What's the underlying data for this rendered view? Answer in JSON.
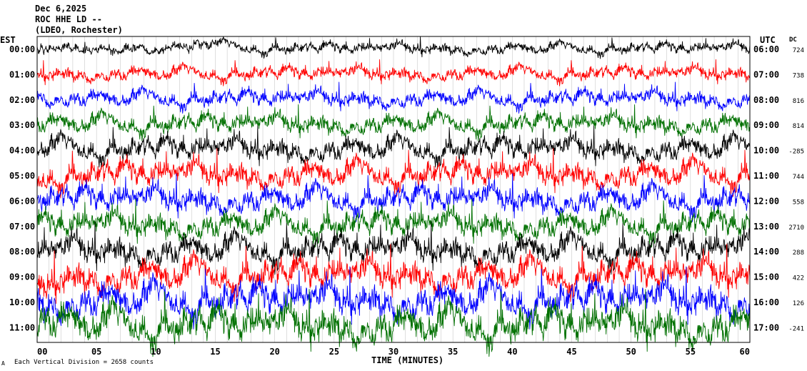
{
  "header": {
    "date": "Dec 6,2025",
    "station": "ROC HHE LD --",
    "location": "(LDEO, Rochester)"
  },
  "chart_data": {
    "type": "line",
    "title": "ROC HHE LD --",
    "xlabel": "TIME (MINUTES)",
    "footer": "Each Vertical Division = 2658 counts",
    "left_axis_title": "EST",
    "right_axis_title": "UTC",
    "dc_title": "DC",
    "x_ticks": [
      "00",
      "05",
      "10",
      "15",
      "20",
      "25",
      "30",
      "35",
      "40",
      "45",
      "50",
      "55",
      "60"
    ],
    "xlim": [
      0,
      60
    ],
    "grid": true,
    "colors": [
      "#000000",
      "#ff0000",
      "#0000ff",
      "#007000"
    ],
    "rows": [
      {
        "est": "00:00",
        "utc": "06:00",
        "dc": "724",
        "color": "#000000",
        "amp": 9
      },
      {
        "est": "01:00",
        "utc": "07:00",
        "dc": "738",
        "color": "#ff0000",
        "amp": 11
      },
      {
        "est": "02:00",
        "utc": "08:00",
        "dc": "816",
        "color": "#0000ff",
        "amp": 13
      },
      {
        "est": "03:00",
        "utc": "09:00",
        "dc": "814",
        "color": "#007000",
        "amp": 15
      },
      {
        "est": "04:00",
        "utc": "10:00",
        "dc": "-285",
        "color": "#000000",
        "amp": 18
      },
      {
        "est": "05:00",
        "utc": "11:00",
        "dc": "744",
        "color": "#ff0000",
        "amp": 20
      },
      {
        "est": "06:00",
        "utc": "12:00",
        "dc": "558",
        "color": "#0000ff",
        "amp": 20
      },
      {
        "est": "07:00",
        "utc": "13:00",
        "dc": "2710",
        "color": "#007000",
        "amp": 20
      },
      {
        "est": "08:00",
        "utc": "14:00",
        "dc": "288",
        "color": "#000000",
        "amp": 22
      },
      {
        "est": "09:00",
        "utc": "15:00",
        "dc": "422",
        "color": "#ff0000",
        "amp": 24
      },
      {
        "est": "10:00",
        "utc": "16:00",
        "dc": "126",
        "color": "#0000ff",
        "amp": 26
      },
      {
        "est": "11:00",
        "utc": "17:00",
        "dc": "-241",
        "color": "#007000",
        "amp": 28
      }
    ]
  }
}
